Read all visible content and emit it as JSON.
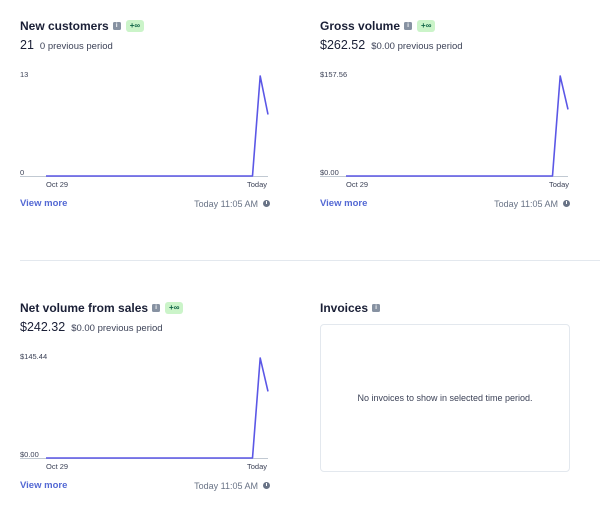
{
  "panels": [
    {
      "title": "New customers",
      "badge": "+∞",
      "value": "21",
      "previous": "0 previous period",
      "y_max_label": "13",
      "y_min_label": "0",
      "x_start_label": "Oct 29",
      "x_end_label": "Today",
      "view_more": "View more",
      "updated": "Today 11:05 AM"
    },
    {
      "title": "Gross volume",
      "badge": "+∞",
      "value": "$262.52",
      "previous": "$0.00 previous period",
      "y_max_label": "$157.56",
      "y_min_label": "$0.00",
      "x_start_label": "Oct 29",
      "x_end_label": "Today",
      "view_more": "View more",
      "updated": "Today 11:05 AM"
    },
    {
      "title": "Net volume from sales",
      "badge": "+∞",
      "value": "$242.32",
      "previous": "$0.00 previous period",
      "y_max_label": "$145.44",
      "y_min_label": "$0.00",
      "x_start_label": "Oct 29",
      "x_end_label": "Today",
      "view_more": "View more",
      "updated": "Today 11:05 AM"
    }
  ],
  "invoices": {
    "title": "Invoices",
    "empty_message": "No invoices to show in selected time period."
  },
  "colors": {
    "line": "#5b57e6",
    "link": "#5469d4",
    "badge_bg": "#cbf4c9",
    "badge_text": "#0e6245"
  },
  "chart_data": [
    {
      "type": "line",
      "series": [
        {
          "values": [
            0,
            0,
            0,
            0,
            0,
            0,
            0,
            0,
            13,
            8
          ]
        }
      ],
      "ylim": [
        0,
        13
      ]
    },
    {
      "type": "line",
      "series": [
        {
          "values": [
            0,
            0,
            0,
            0,
            0,
            0,
            0,
            0,
            157.56,
            104.96
          ]
        }
      ],
      "ylim": [
        0,
        157.56
      ]
    },
    {
      "type": "line",
      "series": [
        {
          "values": [
            0,
            0,
            0,
            0,
            0,
            0,
            0,
            0,
            145.44,
            96.88
          ]
        }
      ],
      "ylim": [
        0,
        145.44
      ]
    }
  ]
}
